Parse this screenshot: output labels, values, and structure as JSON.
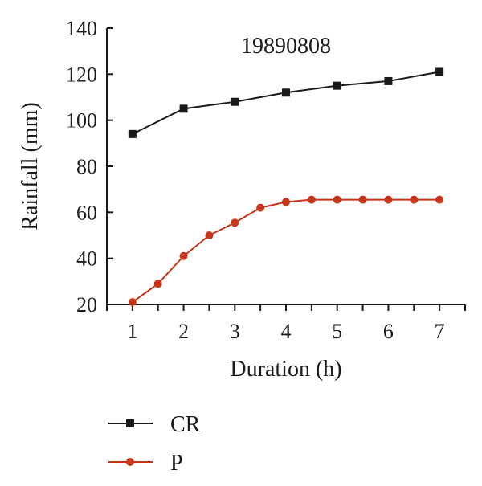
{
  "chart_data": {
    "type": "line",
    "title": "19890808",
    "xlabel": "Duration (h)",
    "ylabel": "Rainfall (mm)",
    "xlim": [
      0.5,
      7.5
    ],
    "ylim": [
      20,
      140
    ],
    "xticks": [
      1,
      2,
      3,
      4,
      5,
      6,
      7
    ],
    "yticks": [
      20,
      40,
      60,
      80,
      100,
      120,
      140
    ],
    "legend_position": "bottom",
    "series": [
      {
        "name": "CR",
        "color": "#1a1a1a",
        "marker": "square",
        "x": [
          1,
          2,
          3,
          4,
          5,
          6,
          7
        ],
        "values": [
          94,
          105,
          108,
          112,
          115,
          117,
          121
        ]
      },
      {
        "name": "P",
        "color": "#c8361a",
        "marker": "circle",
        "x": [
          1,
          1.5,
          2,
          2.5,
          3,
          3.5,
          4,
          4.5,
          5,
          5.5,
          6,
          6.5,
          7
        ],
        "values": [
          21,
          29,
          41,
          50,
          55.5,
          62,
          64.5,
          65.5,
          65.5,
          65.5,
          65.5,
          65.5,
          65.5
        ]
      }
    ]
  }
}
